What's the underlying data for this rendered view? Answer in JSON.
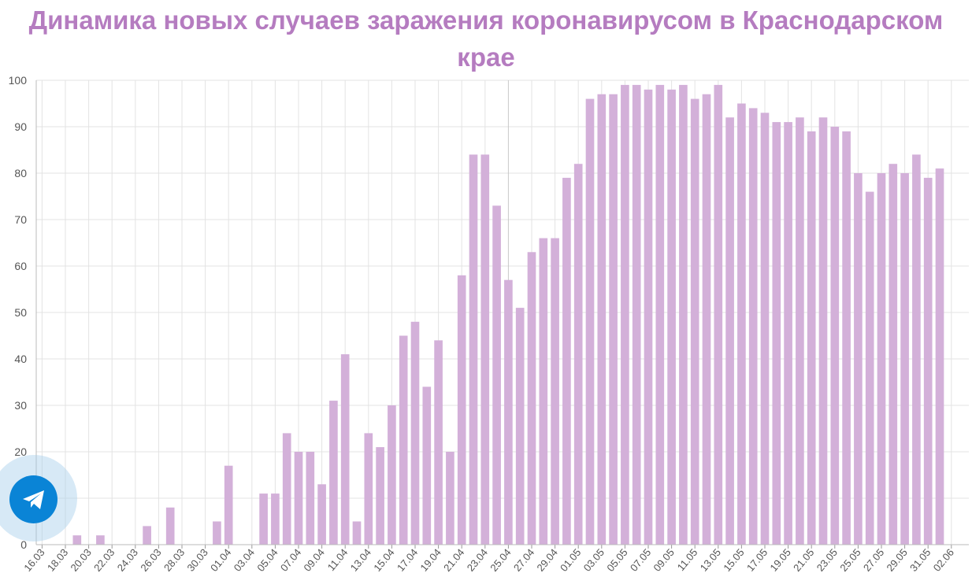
{
  "chart_data": {
    "type": "bar",
    "title": "Динамика новых случаев заражения коронавирусом в Краснодарском крае",
    "xlabel": "",
    "ylabel": "",
    "ylim": [
      0,
      100
    ],
    "yticks": [
      0,
      10,
      20,
      30,
      40,
      50,
      60,
      70,
      80,
      90,
      100
    ],
    "grid": true,
    "bar_color": "#d3b0d9",
    "title_color": "#b57cc0",
    "tick_labels": [
      "16.03",
      "18.03",
      "20.03",
      "22.03",
      "24.03",
      "26.03",
      "28.03",
      "30.03",
      "01.04",
      "03.04",
      "05.04",
      "07.04",
      "09.04",
      "11.04",
      "13.04",
      "15.04",
      "17.04",
      "19.04",
      "21.04",
      "23.04",
      "25.04",
      "27.04",
      "29.04",
      "01.05",
      "03.05",
      "05.05",
      "07.05",
      "09.05",
      "11.05",
      "13.05",
      "15.05",
      "17.05",
      "19.05",
      "21.05",
      "23.05",
      "25.05",
      "27.05",
      "29.05",
      "31.05",
      "02.06"
    ],
    "categories": [
      "16.03",
      "17.03",
      "18.03",
      "19.03",
      "20.03",
      "21.03",
      "22.03",
      "23.03",
      "24.03",
      "25.03",
      "26.03",
      "27.03",
      "28.03",
      "29.03",
      "30.03",
      "31.03",
      "01.04",
      "02.04",
      "03.04",
      "04.04",
      "05.04",
      "06.04",
      "07.04",
      "08.04",
      "09.04",
      "10.04",
      "11.04",
      "12.04",
      "13.04",
      "14.04",
      "15.04",
      "16.04",
      "17.04",
      "18.04",
      "19.04",
      "20.04",
      "21.04",
      "22.04",
      "23.04",
      "24.04",
      "25.04",
      "26.04",
      "27.04",
      "28.04",
      "29.04",
      "30.04",
      "01.05",
      "02.05",
      "03.05",
      "04.05",
      "05.05",
      "06.05",
      "07.05",
      "08.05",
      "09.05",
      "10.05",
      "11.05",
      "12.05",
      "13.05",
      "14.05",
      "15.05",
      "16.05",
      "17.05",
      "18.05",
      "19.05",
      "20.05",
      "21.05",
      "22.05",
      "23.05",
      "24.05",
      "25.05",
      "26.05",
      "27.05",
      "28.05",
      "29.05",
      "30.05",
      "31.05",
      "01.06",
      "02.06",
      "03.06"
    ],
    "values": [
      0,
      0,
      0,
      2,
      0,
      2,
      0,
      0,
      0,
      4,
      0,
      8,
      0,
      0,
      0,
      5,
      17,
      0,
      0,
      11,
      11,
      24,
      20,
      20,
      13,
      31,
      41,
      5,
      24,
      21,
      30,
      45,
      48,
      34,
      44,
      20,
      58,
      84,
      84,
      73,
      57,
      51,
      63,
      66,
      66,
      79,
      82,
      96,
      97,
      97,
      99,
      99,
      98,
      99,
      98,
      99,
      96,
      97,
      99,
      92,
      95,
      94,
      93,
      91,
      91,
      92,
      89,
      92,
      90,
      89,
      80,
      76,
      80,
      82,
      80,
      84,
      79,
      81,
      0,
      0
    ]
  },
  "widgets": {
    "telegram_icon": "telegram-plane-icon",
    "telegram_color": "#0a84d6"
  }
}
